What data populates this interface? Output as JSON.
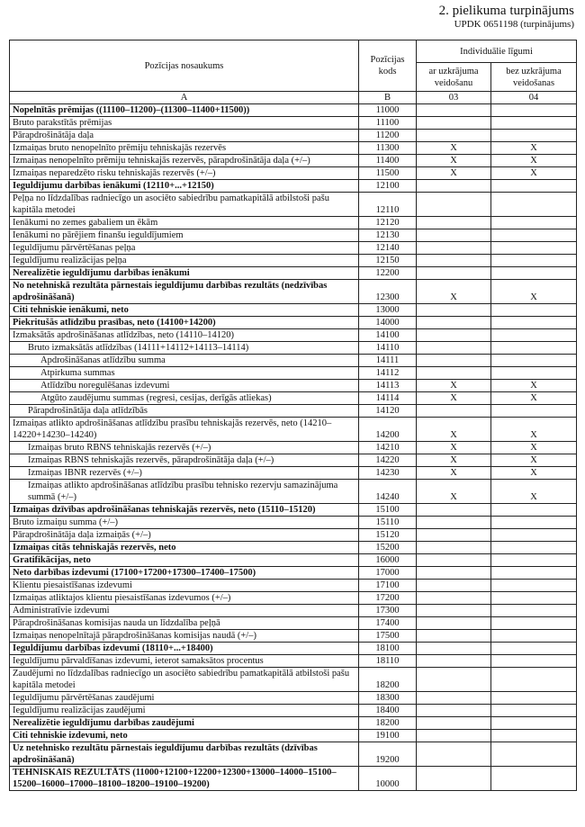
{
  "header": {
    "title": "2. pielikuma turpinājums",
    "code": "UPDK 0651198 (turpinājums)"
  },
  "table": {
    "columns": {
      "name": "Pozīcijas nosaukums",
      "code": "Pozīcijas kods",
      "group": "Individuālie līgumi",
      "c03": "ar uzkrājuma veidošanu",
      "c04": "bez uzkrājuma veidošanas"
    },
    "letters": [
      "A",
      "B",
      "03",
      "04"
    ],
    "rows": [
      {
        "name": "Nopelnītās prēmijas ((11100–11200)–(11300–11400+11500))",
        "code": "11000",
        "bold": true
      },
      {
        "name": "Bruto parakstītās prēmijas",
        "code": "11100"
      },
      {
        "name": "Pārapdrošinātāja daļa",
        "code": "11200"
      },
      {
        "name": "Izmaiņas bruto nenopelnīto prēmiju tehniskajās rezervēs",
        "code": "11300",
        "c03": "X",
        "c04": "X"
      },
      {
        "name": "Izmaiņas nenopelnīto prēmiju tehniskajās rezervēs, pārapdrošinātāja daļa (+/–)",
        "code": "11400",
        "c03": "X",
        "c04": "X"
      },
      {
        "name": "Izmaiņas neparedzēto risku tehniskajās rezervēs (+/–)",
        "code": "11500",
        "c03": "X",
        "c04": "X"
      },
      {
        "name": "Ieguldījumu darbības ienākumi (12110+...+12150)",
        "code": "12100",
        "bold": true
      },
      {
        "name": "Peļņa no līdzdalības radniecīgo un asociēto sabiedrību pamatkapitālā atbilstoši pašu kapitāla metodei",
        "code": "12110"
      },
      {
        "name": "Ienākumi no zemes gabaliem un ēkām",
        "code": "12120"
      },
      {
        "name": "Ienākumi no pārējiem finanšu ieguldījumiem",
        "code": "12130"
      },
      {
        "name": "Ieguldījumu pārvērtēšanas peļņa",
        "code": "12140"
      },
      {
        "name": "Ieguldījumu realizācijas peļņa",
        "code": "12150"
      },
      {
        "name": "Nerealizētie ieguldījumu darbības ienākumi",
        "code": "12200",
        "bold": true
      },
      {
        "name": "No netehniskā rezultāta pārnestais ieguldījumu darbības rezultāts (nedzīvības apdrošināšanā)",
        "code": "12300",
        "bold": true,
        "c03": "X",
        "c04": "X"
      },
      {
        "name": "Citi tehniskie ienākumi, neto",
        "code": "13000",
        "bold": true
      },
      {
        "name": "Piekritušās atlīdzību prasības, neto (14100+14200)",
        "code": "14000",
        "bold": true
      },
      {
        "name": "Izmaksātās apdrošināšanas atlīdzības, neto (14110–14120)",
        "code": "14100"
      },
      {
        "name": "Bruto izmaksātās atlīdzības (14111+14112+14113–14114)",
        "code": "14110",
        "level": 1
      },
      {
        "name": "Apdrošināšanas atlīdzību summa",
        "code": "14111",
        "level": 2
      },
      {
        "name": "Atpirkuma summas",
        "code": "14112",
        "level": 2
      },
      {
        "name": "Atlīdzību noregulēšanas izdevumi",
        "code": "14113",
        "level": 2,
        "c03": "X",
        "c04": "X"
      },
      {
        "name": "Atgūto zaudējumu summas (regresi, cesijas, derīgās atliekas)",
        "code": "14114",
        "level": 2,
        "c03": "X",
        "c04": "X"
      },
      {
        "name": "Pārapdrošinātāja daļa atlīdzībās",
        "code": "14120",
        "level": 1
      },
      {
        "name": "Izmaiņas atlikto apdrošināšanas atlīdzību prasību tehniskajās rezervēs, neto (14210–14220+14230–14240)",
        "code": "14200",
        "c03": "X",
        "c04": "X"
      },
      {
        "name": "Izmaiņas bruto RBNS tehniskajās rezervēs (+/–)",
        "code": "14210",
        "level": 1,
        "c03": "X",
        "c04": "X"
      },
      {
        "name": "Izmaiņas RBNS tehniskajās rezervēs, pārapdrošinātāja daļa (+/–)",
        "code": "14220",
        "level": 1,
        "c03": "X",
        "c04": "X"
      },
      {
        "name": "Izmaiņas IBNR rezervēs (+/–)",
        "code": "14230",
        "level": 1,
        "c03": "X",
        "c04": "X"
      },
      {
        "name": "Izmaiņas atlikto apdrošināšanas atlīdzību prasību tehnisko rezervju samazinājuma summā (+/–)",
        "code": "14240",
        "level": 1,
        "c03": "X",
        "c04": "X"
      },
      {
        "name": "Izmaiņas dzīvības apdrošināšanas tehniskajās rezervēs, neto (15110–15120)",
        "code": "15100",
        "bold": true
      },
      {
        "name": "Bruto izmaiņu summa (+/–)",
        "code": "15110"
      },
      {
        "name": "Pārapdrošinātāja daļa izmaiņās (+/–)",
        "code": "15120"
      },
      {
        "name": "Izmaiņas citās tehniskajās rezervēs, neto",
        "code": "15200",
        "bold": true
      },
      {
        "name": "Gratifikācijas, neto",
        "code": "16000",
        "bold": true
      },
      {
        "name": "Neto darbības izdevumi (17100+17200+17300–17400–17500)",
        "code": "17000",
        "bold": true
      },
      {
        "name": "Klientu piesaistīšanas izdevumi",
        "code": "17100"
      },
      {
        "name": "Izmaiņas atliktajos klientu piesaistīšanas izdevumos (+/–)",
        "code": "17200"
      },
      {
        "name": "Administratīvie izdevumi",
        "code": "17300"
      },
      {
        "name": "Pārapdrošināšanas komisijas nauda un līdzdalība peļņā",
        "code": "17400"
      },
      {
        "name": "Izmaiņas nenopelnītajā pārapdrošināšanas komisijas naudā (+/–)",
        "code": "17500"
      },
      {
        "name": "Ieguldījumu darbības izdevumi (18110+...+18400)",
        "code": "18100",
        "bold": true
      },
      {
        "name": "Ieguldījumu pārvaldīšanas izdevumi, ieterot samaksātos procentus",
        "code": "18110"
      },
      {
        "name": "Zaudējumi no līdzdalības radniecīgo un asociēto sabiedrību pamatkapitālā atbilstoši pašu kapitāla metodei",
        "code": "18200"
      },
      {
        "name": "Ieguldījumu pārvērtēšanas zaudējumi",
        "code": "18300"
      },
      {
        "name": "Ieguldījumu realizācijas zaudējumi",
        "code": "18400"
      },
      {
        "name": "Nerealizētie ieguldījumu darbības zaudējumi",
        "code": "18200",
        "bold": true
      },
      {
        "name": "Citi tehniskie izdevumi, neto",
        "code": "19100",
        "bold": true
      },
      {
        "name": "Uz netehnisko rezultātu pārnestais ieguldījumu darbības rezultāts (dzīvības apdrošināšanā)",
        "code": "19200",
        "bold": true
      },
      {
        "name": "TEHNISKAIS REZULTĀTS (11000+12100+12200+12300+13000–14000–15100–15200–16000–17000–18100–18200–19100–19200)",
        "code": "10000",
        "bold": true
      }
    ]
  }
}
